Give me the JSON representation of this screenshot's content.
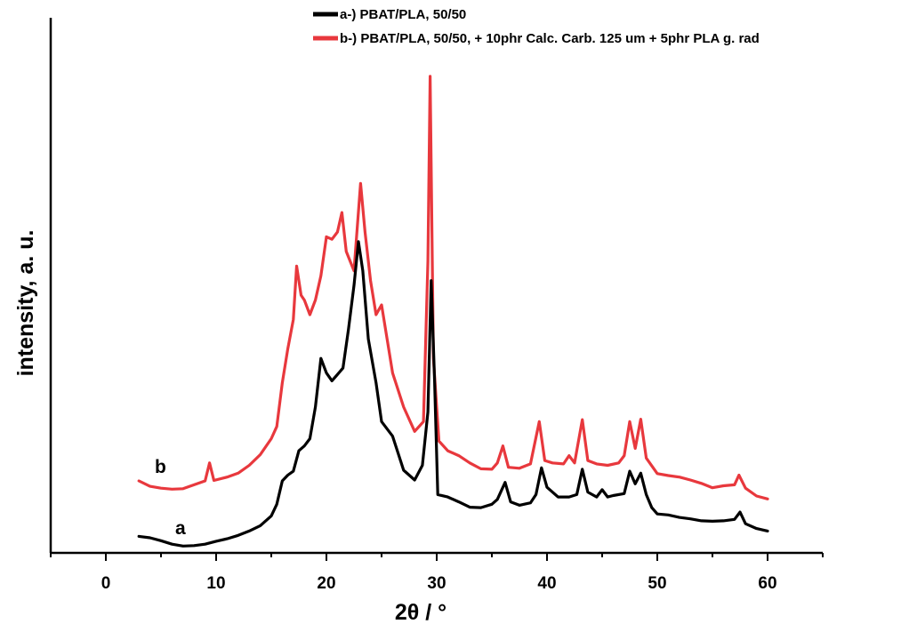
{
  "chart_data": {
    "type": "line",
    "title": "",
    "xlabel": "2θ / °",
    "ylabel": "intensity, a. u.",
    "xlim": [
      -5,
      65
    ],
    "ylim": [
      0,
      100
    ],
    "x_ticks": [
      0,
      10,
      20,
      30,
      40,
      50,
      60
    ],
    "y_ticks_shown": false,
    "grid": false,
    "legend_position": "top",
    "colors": {
      "a": "#000000",
      "b": "#e8383d",
      "axis": "#000000"
    },
    "curve_labels": {
      "a": "a",
      "b": "b"
    },
    "series": [
      {
        "name": "a-) PBAT/PLA, 50/50",
        "label": "a",
        "points": [
          [
            3,
            3.4
          ],
          [
            4,
            3.1
          ],
          [
            5,
            2.5
          ],
          [
            6,
            1.8
          ],
          [
            7,
            1.4
          ],
          [
            8,
            1.5
          ],
          [
            9,
            1.8
          ],
          [
            10,
            2.4
          ],
          [
            11,
            2.9
          ],
          [
            12,
            3.6
          ],
          [
            13,
            4.5
          ],
          [
            14,
            5.6
          ],
          [
            15,
            7.6
          ],
          [
            15.5,
            10
          ],
          [
            16,
            14.8
          ],
          [
            16.5,
            16
          ],
          [
            17,
            16.8
          ],
          [
            17.5,
            21
          ],
          [
            18,
            22
          ],
          [
            18.5,
            23.5
          ],
          [
            19,
            30
          ],
          [
            19.5,
            40
          ],
          [
            20,
            37
          ],
          [
            20.5,
            35.4
          ],
          [
            21,
            36.7
          ],
          [
            21.5,
            38
          ],
          [
            22,
            46
          ],
          [
            22.5,
            55
          ],
          [
            22.9,
            64
          ],
          [
            23.3,
            58
          ],
          [
            23.8,
            44
          ],
          [
            24.5,
            35
          ],
          [
            25,
            27
          ],
          [
            26,
            24
          ],
          [
            27,
            17
          ],
          [
            28,
            15
          ],
          [
            28.7,
            18
          ],
          [
            29.2,
            29
          ],
          [
            29.5,
            56
          ],
          [
            29.8,
            36
          ],
          [
            30.1,
            12
          ],
          [
            31,
            11.5
          ],
          [
            32,
            10.5
          ],
          [
            33,
            9.4
          ],
          [
            34,
            9.3
          ],
          [
            35,
            10
          ],
          [
            35.5,
            11
          ],
          [
            36.2,
            14.5
          ],
          [
            36.7,
            10.5
          ],
          [
            37.5,
            9.8
          ],
          [
            38.5,
            10.3
          ],
          [
            39,
            12
          ],
          [
            39.5,
            17.5
          ],
          [
            40,
            13.5
          ],
          [
            41,
            11.5
          ],
          [
            42,
            11.5
          ],
          [
            42.7,
            12
          ],
          [
            43.2,
            17.2
          ],
          [
            43.7,
            12.5
          ],
          [
            44.5,
            11.5
          ],
          [
            45,
            13
          ],
          [
            45.5,
            11.5
          ],
          [
            46,
            11.8
          ],
          [
            47,
            12.2
          ],
          [
            47.5,
            16.8
          ],
          [
            48,
            14.2
          ],
          [
            48.5,
            16.4
          ],
          [
            49,
            12
          ],
          [
            49.5,
            9.3
          ],
          [
            50,
            8
          ],
          [
            51,
            7.8
          ],
          [
            52,
            7.3
          ],
          [
            53,
            7
          ],
          [
            54,
            6.6
          ],
          [
            55,
            6.5
          ],
          [
            56,
            6.6
          ],
          [
            57,
            6.9
          ],
          [
            57.5,
            8.4
          ],
          [
            58,
            6
          ],
          [
            59,
            5
          ],
          [
            60,
            4.5
          ]
        ]
      },
      {
        "name": "b-) PBAT/PLA, 50/50, + 10phr Calc. Carb. 125 um + 5phr PLA g. rad",
        "label": "b",
        "points": [
          [
            3,
            14.8
          ],
          [
            4,
            13.7
          ],
          [
            5,
            13.3
          ],
          [
            6,
            13.1
          ],
          [
            7,
            13.2
          ],
          [
            8,
            14
          ],
          [
            9,
            14.8
          ],
          [
            9.4,
            18.5
          ],
          [
            9.8,
            14.9
          ],
          [
            11,
            15.6
          ],
          [
            12,
            16.4
          ],
          [
            13,
            18
          ],
          [
            14,
            20.2
          ],
          [
            15,
            23.5
          ],
          [
            15.5,
            26
          ],
          [
            16,
            35
          ],
          [
            16.5,
            42
          ],
          [
            17,
            48
          ],
          [
            17.3,
            59
          ],
          [
            17.7,
            53
          ],
          [
            18,
            52
          ],
          [
            18.5,
            49
          ],
          [
            19,
            52
          ],
          [
            19.5,
            57
          ],
          [
            20,
            65
          ],
          [
            20.5,
            64.5
          ],
          [
            21,
            66
          ],
          [
            21.4,
            70
          ],
          [
            21.8,
            62
          ],
          [
            22.5,
            58
          ],
          [
            23.1,
            76
          ],
          [
            23.5,
            66
          ],
          [
            24,
            56
          ],
          [
            24.5,
            49
          ],
          [
            25,
            51
          ],
          [
            25.5,
            44
          ],
          [
            26,
            37
          ],
          [
            27,
            30
          ],
          [
            28,
            25
          ],
          [
            28.8,
            27
          ],
          [
            29.2,
            60
          ],
          [
            29.4,
            98
          ],
          [
            29.7,
            40
          ],
          [
            30.2,
            23
          ],
          [
            31,
            21
          ],
          [
            32,
            20
          ],
          [
            33,
            18.5
          ],
          [
            34,
            17.3
          ],
          [
            35,
            17.2
          ],
          [
            35.5,
            18.5
          ],
          [
            36,
            22
          ],
          [
            36.5,
            17.6
          ],
          [
            37.5,
            17.4
          ],
          [
            38.5,
            18.3
          ],
          [
            39.3,
            27
          ],
          [
            39.8,
            19
          ],
          [
            40.5,
            18.5
          ],
          [
            41.5,
            18.3
          ],
          [
            42,
            20
          ],
          [
            42.5,
            18.5
          ],
          [
            43.2,
            27.4
          ],
          [
            43.7,
            19
          ],
          [
            44.5,
            18.3
          ],
          [
            45.5,
            18
          ],
          [
            46.5,
            18.5
          ],
          [
            47,
            20
          ],
          [
            47.5,
            27
          ],
          [
            48,
            21.5
          ],
          [
            48.5,
            27.5
          ],
          [
            49,
            19.5
          ],
          [
            50,
            16.3
          ],
          [
            51,
            15.9
          ],
          [
            52,
            15.6
          ],
          [
            53,
            15
          ],
          [
            54,
            14.3
          ],
          [
            55,
            13.4
          ],
          [
            56,
            13.8
          ],
          [
            57,
            14
          ],
          [
            57.4,
            16
          ],
          [
            58,
            13.3
          ],
          [
            59,
            11.7
          ],
          [
            60,
            11.1
          ]
        ]
      }
    ]
  }
}
